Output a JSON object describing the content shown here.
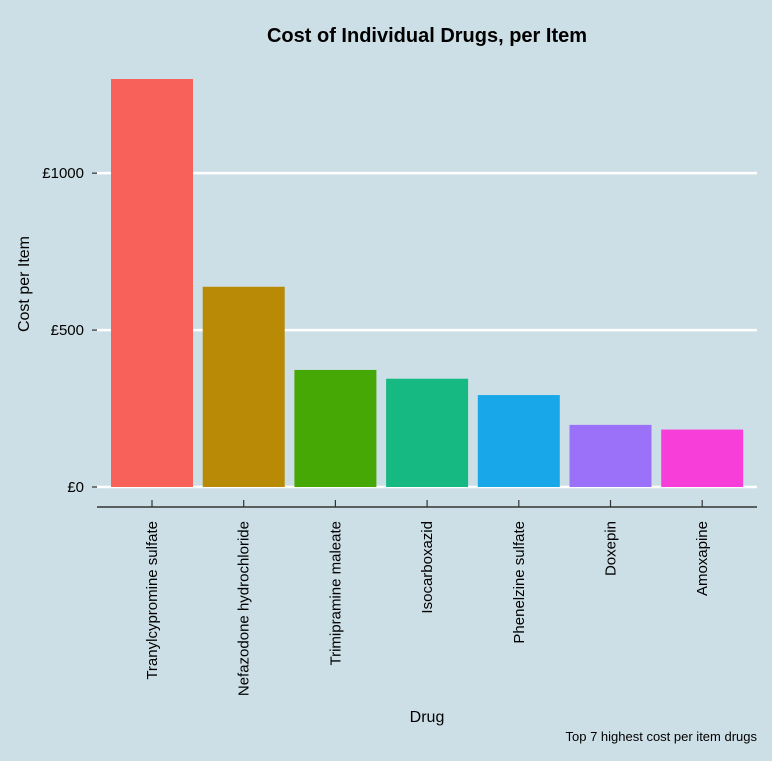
{
  "chart_data": {
    "type": "bar",
    "title": "Cost of Individual Drugs, per Item",
    "xlabel": "Drug",
    "ylabel": "Cost per Item",
    "caption": "Top 7 highest cost per item drugs",
    "categories": [
      "Tranylcypromine sulfate",
      "Nefazodone hydrochloride",
      "Trimipramine maleate",
      "Isocarboxazid",
      "Phenelzine sulfate",
      "Doxepin",
      "Amoxapine"
    ],
    "values": [
      1300,
      638,
      373,
      345,
      293,
      198,
      183
    ],
    "colors": [
      "#f8615a",
      "#b88a06",
      "#46a805",
      "#17b983",
      "#18a7e8",
      "#9a71f8",
      "#f73ed9"
    ],
    "y_ticks": [
      0,
      500,
      1000
    ],
    "y_tick_labels": [
      "£0",
      "£500",
      "£1000"
    ],
    "ylim": [
      0,
      1300
    ],
    "grid": "horizontal major lines",
    "legend": "none"
  }
}
